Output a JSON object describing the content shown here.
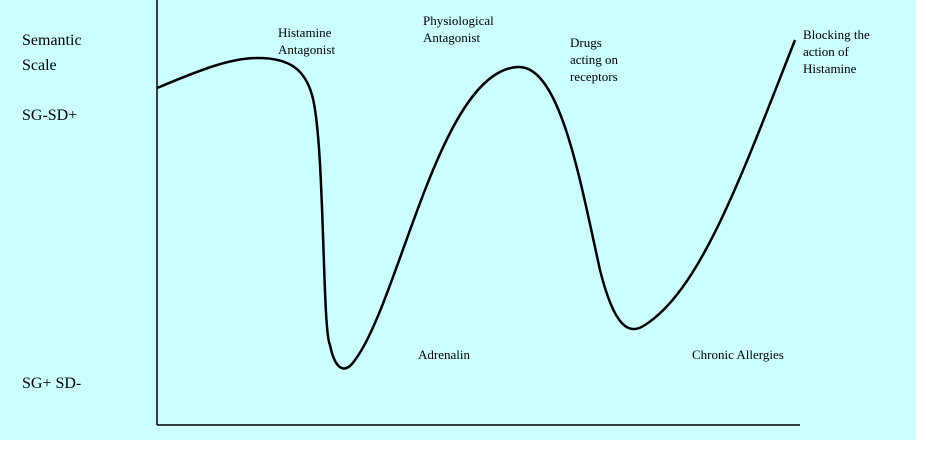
{
  "axis": {
    "title": [
      "Semantic",
      "Scale"
    ],
    "top_label": "SG-SD+",
    "bottom_label": "SG+ SD-"
  },
  "annotations": [
    {
      "lines": [
        "Histamine",
        "Antagonist"
      ]
    },
    {
      "lines": [
        "Physiological",
        "Antagonist"
      ]
    },
    {
      "lines": [
        "Drugs",
        "acting on",
        "receptors"
      ]
    },
    {
      "lines": [
        "Blocking the",
        "action of",
        "Histamine"
      ]
    },
    {
      "lines": [
        "Adrenalin"
      ]
    },
    {
      "lines": [
        "Chronic Allergies"
      ]
    }
  ]
}
